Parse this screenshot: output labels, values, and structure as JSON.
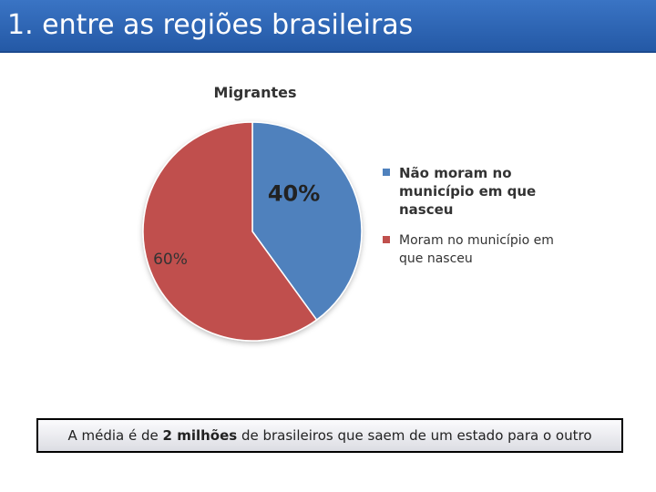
{
  "slide": {
    "title": "1. entre as regiões brasileiras"
  },
  "chart_data": {
    "type": "pie",
    "title": "Migrantes",
    "categories": [
      "Não moram no município em que nasceu",
      "Moram no município em que nasceu"
    ],
    "values": [
      40,
      60
    ],
    "data_labels": [
      "40%",
      "60%"
    ],
    "colors": [
      "#4f81bd",
      "#c0504d"
    ],
    "legend_position": "right"
  },
  "note": {
    "text_before": "A média é de ",
    "text_bold": "2 milhões",
    "text_after": " de brasileiros que saem de um estado para o outro"
  }
}
